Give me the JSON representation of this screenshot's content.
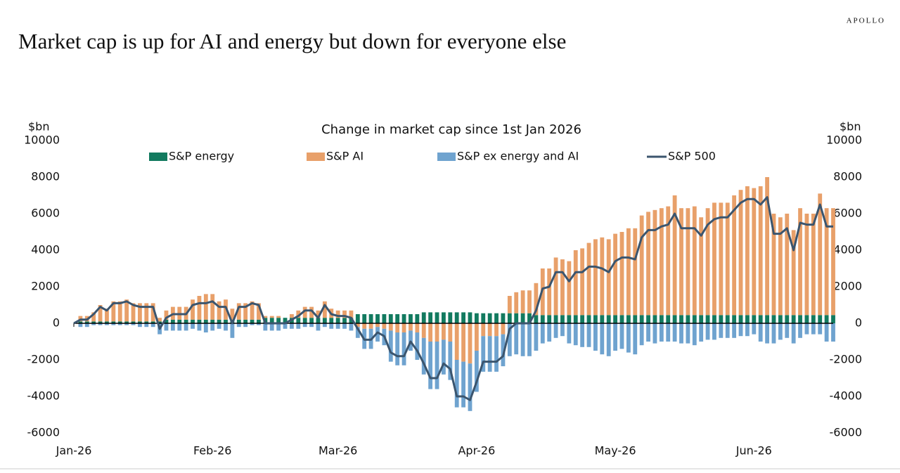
{
  "brand": "APOLLO",
  "chart_data": {
    "type": "bar",
    "title": "Market cap is up for AI and energy but down for everyone else",
    "subtitle": "Change in market cap since 1st Jan 2026",
    "y_label": "$bn",
    "y2_label": "$bn",
    "categories": [
      "Jan-26",
      null,
      null,
      null,
      null,
      null,
      null,
      null,
      null,
      null,
      null,
      null,
      null,
      null,
      null,
      null,
      null,
      null,
      null,
      null,
      null,
      "Feb-26",
      null,
      null,
      null,
      null,
      null,
      null,
      null,
      null,
      null,
      null,
      null,
      null,
      null,
      null,
      null,
      null,
      null,
      null,
      "Mar-26",
      null,
      null,
      null,
      null,
      null,
      null,
      null,
      null,
      null,
      null,
      null,
      null,
      null,
      null,
      null,
      null,
      null,
      null,
      null,
      null,
      "Apr-26",
      null,
      null,
      null,
      null,
      null,
      null,
      null,
      null,
      null,
      null,
      null,
      null,
      null,
      null,
      null,
      null,
      null,
      null,
      null,
      null,
      "May-26",
      null,
      null,
      null,
      null,
      null,
      null,
      null,
      null,
      null,
      null,
      null,
      null,
      null,
      null,
      null,
      null,
      null,
      null,
      null,
      null,
      "Jun-26",
      null,
      null,
      null,
      null,
      null,
      null,
      null,
      null,
      null,
      null,
      null,
      null
    ],
    "ylim": [
      -6000,
      10000
    ],
    "yticks": [
      -6000,
      -4000,
      -2000,
      0,
      2000,
      4000,
      6000,
      8000,
      10000
    ],
    "y2lim": [
      -6000,
      10000
    ],
    "y2ticks": [
      -6000,
      -4000,
      -2000,
      0,
      2000,
      4000,
      6000,
      8000,
      10000
    ],
    "grid": false,
    "stacked": true,
    "series": [
      {
        "name": "S&P energy",
        "type": "bar",
        "color": "#127a5f",
        "values": [
          0,
          100,
          100,
          100,
          100,
          100,
          100,
          100,
          100,
          100,
          100,
          100,
          100,
          100,
          200,
          200,
          200,
          200,
          200,
          200,
          200,
          200,
          200,
          200,
          200,
          200,
          200,
          200,
          200,
          300,
          300,
          300,
          300,
          300,
          300,
          300,
          300,
          300,
          300,
          300,
          300,
          300,
          300,
          500,
          500,
          500,
          500,
          500,
          500,
          500,
          500,
          500,
          500,
          600,
          600,
          600,
          600,
          600,
          600,
          600,
          600,
          550,
          550,
          550,
          550,
          550,
          550,
          550,
          550,
          550,
          450,
          450,
          450,
          450,
          450,
          450,
          450,
          450,
          450,
          450,
          450,
          450,
          450,
          450,
          450,
          450,
          450,
          450,
          450,
          450,
          450,
          450,
          450,
          450,
          450,
          450,
          450,
          450,
          450,
          450,
          450,
          450,
          450,
          450,
          450,
          450,
          450,
          450,
          450,
          450,
          450,
          450,
          450,
          450,
          450,
          450
        ]
      },
      {
        "name": "S&P AI",
        "type": "bar",
        "color": "#e8a06a",
        "values": [
          0,
          300,
          300,
          500,
          900,
          700,
          1100,
          1100,
          1200,
          1000,
          1000,
          1000,
          1000,
          200,
          500,
          700,
          700,
          700,
          1100,
          1300,
          1400,
          1400,
          1000,
          1100,
          600,
          900,
          900,
          1000,
          900,
          100,
          100,
          100,
          0,
          200,
          400,
          600,
          600,
          400,
          900,
          500,
          400,
          400,
          400,
          -200,
          -300,
          -300,
          -200,
          -300,
          -400,
          -500,
          -500,
          -400,
          -500,
          -800,
          -1000,
          -1000,
          -900,
          -1000,
          -2000,
          -2100,
          -2200,
          -1500,
          -700,
          -700,
          -700,
          -600,
          950,
          1150,
          1250,
          1250,
          1750,
          2550,
          2550,
          3150,
          3050,
          2950,
          3550,
          3650,
          3950,
          4150,
          4250,
          4150,
          4450,
          4550,
          4750,
          4750,
          5450,
          5650,
          5750,
          5850,
          5950,
          6550,
          5850,
          5850,
          5950,
          5350,
          5850,
          6150,
          6150,
          6150,
          6550,
          6850,
          7050,
          6950,
          7050,
          7550,
          5550,
          5350,
          5550,
          4650,
          5850,
          5550,
          5550,
          6650,
          5850,
          5850
        ]
      },
      {
        "name": "S&P ex energy and AI",
        "type": "bar",
        "color": "#6fa3cf",
        "values": [
          0,
          -200,
          -200,
          -100,
          -100,
          -100,
          -100,
          -100,
          -100,
          -100,
          -200,
          -200,
          -200,
          -600,
          -400,
          -400,
          -400,
          -400,
          -300,
          -400,
          -500,
          -400,
          -300,
          -400,
          -800,
          -200,
          -200,
          -100,
          -100,
          -400,
          -400,
          -400,
          -300,
          -300,
          -300,
          -200,
          -200,
          -400,
          -200,
          -300,
          -300,
          -300,
          -400,
          -600,
          -1100,
          -1100,
          -800,
          -900,
          -1700,
          -1800,
          -1800,
          -1100,
          -1500,
          -2000,
          -2600,
          -2600,
          -1900,
          -2100,
          -2600,
          -2500,
          -2600,
          -2250,
          -1950,
          -1950,
          -1950,
          -1750,
          -1800,
          -1700,
          -1800,
          -1800,
          -1500,
          -1100,
          -1000,
          -800,
          -700,
          -1100,
          -1200,
          -1300,
          -1300,
          -1500,
          -1700,
          -1800,
          -1500,
          -1400,
          -1600,
          -1700,
          -1200,
          -1000,
          -1100,
          -1000,
          -1000,
          -1000,
          -1100,
          -1100,
          -1200,
          -1000,
          -900,
          -900,
          -800,
          -800,
          -800,
          -700,
          -700,
          -600,
          -1000,
          -1100,
          -1100,
          -900,
          -800,
          -1100,
          -800,
          -600,
          -600,
          -600,
          -1000,
          -1000
        ]
      },
      {
        "name": "S&P 500",
        "type": "line",
        "color": "#3b556e",
        "values": [
          0,
          200,
          200,
          500,
          900,
          700,
          1100,
          1100,
          1200,
          1000,
          900,
          900,
          900,
          -300,
          300,
          500,
          500,
          500,
          1000,
          1100,
          1100,
          1200,
          900,
          900,
          0,
          900,
          900,
          1100,
          1000,
          0,
          0,
          0,
          0,
          200,
          400,
          700,
          700,
          300,
          1000,
          500,
          400,
          400,
          300,
          -300,
          -900,
          -900,
          -500,
          -700,
          -1600,
          -1800,
          -1800,
          -1000,
          -1500,
          -2200,
          -3000,
          -3000,
          -2200,
          -2500,
          -4000,
          -4000,
          -4200,
          -3200,
          -2100,
          -2100,
          -2100,
          -1800,
          -300,
          0,
          0,
          0,
          700,
          1900,
          2000,
          2800,
          2800,
          2300,
          2800,
          2800,
          3100,
          3100,
          3000,
          2800,
          3400,
          3600,
          3600,
          3500,
          4700,
          5100,
          5100,
          5300,
          5400,
          6000,
          5200,
          5200,
          5200,
          4800,
          5400,
          5700,
          5800,
          5800,
          6200,
          6600,
          6800,
          6800,
          6500,
          6900,
          4900,
          4900,
          5200,
          4000,
          5500,
          5400,
          5400,
          6500,
          5300,
          5300
        ]
      }
    ]
  }
}
